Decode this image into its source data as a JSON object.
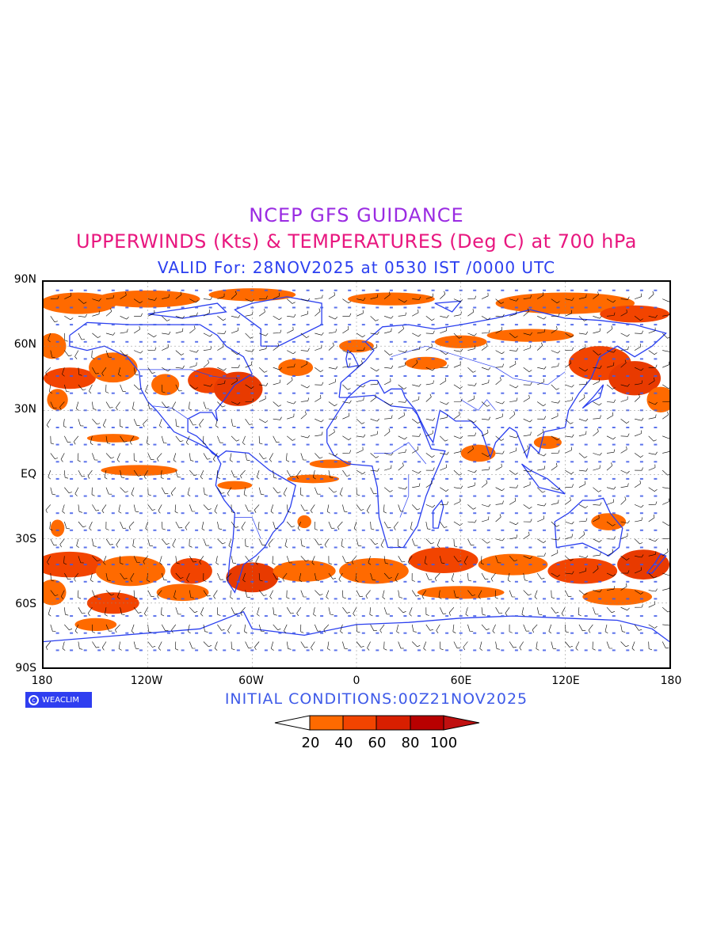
{
  "header": {
    "title": "NCEP GFS GUIDANCE",
    "subtitle": "UPPERWINDS (Kts) & TEMPERATURES (Deg C) at 700 hPa",
    "valid": "VALID For: 28NOV2025 at 0530 IST /0000 UTC"
  },
  "axes": {
    "lat_labels": [
      "90N",
      "60N",
      "30N",
      "EQ",
      "30S",
      "60S",
      "90S"
    ],
    "lon_labels": [
      "180",
      "120W",
      "60W",
      "0",
      "60E",
      "120E",
      "180"
    ]
  },
  "footer": {
    "logo_text": "WEACLIM",
    "initial_conditions": "INITIAL CONDITIONS:00Z21NOV2025"
  },
  "legend": {
    "values": [
      "20",
      "40",
      "60",
      "80",
      "100"
    ],
    "colors": [
      "#ffffff",
      "#ff6a00",
      "#f24400",
      "#d81f00",
      "#b80000",
      "#c01010"
    ]
  },
  "colors": {
    "wind_shading": "#ff6a00",
    "wind_strong": "#e83a00",
    "coastline": "#2a3fef",
    "barbs": "#000000",
    "temperature_labels": "#3e5ae8"
  }
}
